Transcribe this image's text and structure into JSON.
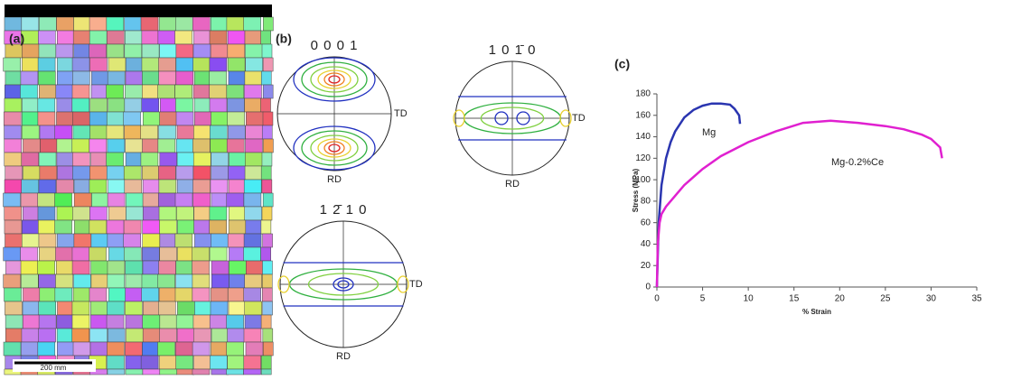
{
  "panels": {
    "a": {
      "label": "(a)",
      "scale_bar": "200 mm"
    },
    "b": {
      "label": "(b)",
      "pole_figures": [
        {
          "title": "0 0 0 1",
          "x_axis": "TD",
          "y_axis": "RD"
        },
        {
          "title": "1 0 1̄ 0",
          "x_axis": "TD",
          "y_axis": "RD"
        },
        {
          "title": "1 2̄ 1 0",
          "x_axis": "TD",
          "y_axis": "RD"
        }
      ]
    }
  },
  "chart_data": {
    "type": "line",
    "panel_label": "(c)",
    "x_label": "% Strain",
    "y_label": "Stress (MPa)",
    "xlim": [
      0,
      35
    ],
    "xticks": [
      0,
      5,
      10,
      15,
      20,
      25,
      30,
      35
    ],
    "ylim": [
      0,
      180
    ],
    "yticks": [
      0,
      20,
      40,
      60,
      80,
      100,
      120,
      140,
      160,
      180
    ],
    "series": [
      {
        "name": "Mg",
        "color": "#2a35b0",
        "x": [
          0,
          0.2,
          0.5,
          1,
          1.5,
          2,
          3,
          4,
          5,
          6,
          7,
          8,
          8.5,
          9,
          9.1
        ],
        "values": [
          0,
          60,
          95,
          120,
          135,
          145,
          158,
          165,
          169,
          171,
          171,
          170,
          166,
          160,
          152
        ]
      },
      {
        "name": "Mg-0.2%Ce",
        "color": "#e020d0",
        "x": [
          0,
          0.1,
          0.3,
          0.5,
          1,
          2,
          3,
          5,
          7,
          10,
          13,
          16,
          19,
          22,
          25,
          27,
          29,
          30,
          31,
          31.2
        ],
        "values": [
          0,
          40,
          60,
          68,
          75,
          85,
          95,
          110,
          122,
          135,
          145,
          153,
          155,
          153,
          150,
          147,
          142,
          138,
          130,
          120
        ]
      }
    ]
  }
}
